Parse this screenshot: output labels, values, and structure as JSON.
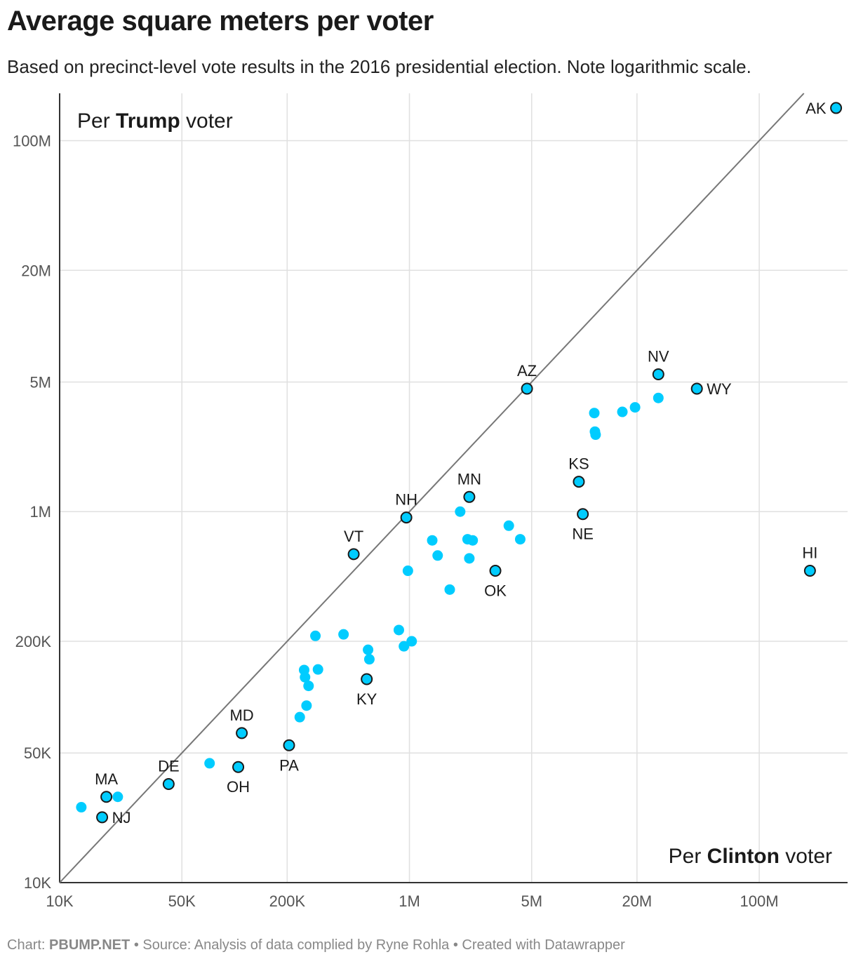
{
  "title": "Average square meters per voter",
  "subtitle": "Based on precinct-level vote results in the 2016 presidential election. Note logarithmic scale.",
  "footer": {
    "chart_prefix": "Chart:",
    "chart_brand": "PBUMP.NET",
    "rest": "• Source: Analysis of data complied by Ryne Rohla • Created with Datawrapper"
  },
  "colors": {
    "point": "#00ccff",
    "point_outline": "#1a1a1a",
    "grid": "#e0e0e0",
    "axis": "#333333",
    "diagonal": "#777777"
  },
  "chart_data": {
    "type": "scatter",
    "x_scale": "log",
    "y_scale": "log",
    "xlim": [
      10000,
      320000000
    ],
    "ylim": [
      10000,
      180000000
    ],
    "grid": true,
    "x_ticks": [
      {
        "value": 10000,
        "label": "10K"
      },
      {
        "value": 50000,
        "label": "50K"
      },
      {
        "value": 200000,
        "label": "200K"
      },
      {
        "value": 1000000,
        "label": "1M"
      },
      {
        "value": 5000000,
        "label": "5M"
      },
      {
        "value": 20000000,
        "label": "20M"
      },
      {
        "value": 100000000,
        "label": "100M"
      }
    ],
    "y_ticks": [
      {
        "value": 10000,
        "label": "10K"
      },
      {
        "value": 50000,
        "label": "50K"
      },
      {
        "value": 200000,
        "label": "200K"
      },
      {
        "value": 1000000,
        "label": "1M"
      },
      {
        "value": 5000000,
        "label": "5M"
      },
      {
        "value": 20000000,
        "label": "20M"
      },
      {
        "value": 100000000,
        "label": "100M"
      }
    ],
    "corner_labels": {
      "top_left": {
        "pre": "Per ",
        "bold": "Trump",
        "post": " voter"
      },
      "bottom_right": {
        "pre": "Per ",
        "bold": "Clinton",
        "post": " voter"
      }
    },
    "points": [
      {
        "label": "AK",
        "x": 275000000,
        "y": 150000000,
        "highlight": true,
        "pos": "left"
      },
      {
        "label": "NV",
        "x": 26500000,
        "y": 5500000,
        "highlight": true,
        "pos": "above"
      },
      {
        "label": "WY",
        "x": 44000000,
        "y": 4600000,
        "highlight": true,
        "pos": "right"
      },
      {
        "label": "AZ",
        "x": 4700000,
        "y": 4600000,
        "highlight": true,
        "pos": "above"
      },
      {
        "label": "KS",
        "x": 9300000,
        "y": 1450000,
        "highlight": true,
        "pos": "above"
      },
      {
        "label": "NE",
        "x": 9800000,
        "y": 970000,
        "highlight": true,
        "pos": "below"
      },
      {
        "label": "MN",
        "x": 2200000,
        "y": 1200000,
        "highlight": true,
        "pos": "above"
      },
      {
        "label": "NH",
        "x": 960000,
        "y": 930000,
        "highlight": true,
        "pos": "above"
      },
      {
        "label": "OK",
        "x": 3100000,
        "y": 480000,
        "highlight": true,
        "pos": "below"
      },
      {
        "label": "VT",
        "x": 480000,
        "y": 590000,
        "highlight": true,
        "pos": "above"
      },
      {
        "label": "HI",
        "x": 195000000,
        "y": 480000,
        "highlight": true,
        "pos": "above"
      },
      {
        "label": "KY",
        "x": 570000,
        "y": 125000,
        "highlight": true,
        "pos": "below"
      },
      {
        "label": "MD",
        "x": 110000,
        "y": 64000,
        "highlight": true,
        "pos": "above"
      },
      {
        "label": "PA",
        "x": 205000,
        "y": 55000,
        "highlight": true,
        "pos": "below"
      },
      {
        "label": "OH",
        "x": 105000,
        "y": 42000,
        "highlight": true,
        "pos": "below"
      },
      {
        "label": "DE",
        "x": 42000,
        "y": 34000,
        "highlight": true,
        "pos": "above"
      },
      {
        "label": "MA",
        "x": 18500,
        "y": 29000,
        "highlight": true,
        "pos": "above"
      },
      {
        "label": "NJ",
        "x": 17500,
        "y": 22500,
        "highlight": true,
        "pos": "right"
      },
      {
        "x": 26500000,
        "y": 4100000
      },
      {
        "x": 19500000,
        "y": 3650000
      },
      {
        "x": 16500000,
        "y": 3450000
      },
      {
        "x": 11400000,
        "y": 3400000
      },
      {
        "x": 11500000,
        "y": 2700000
      },
      {
        "x": 11600000,
        "y": 2600000
      },
      {
        "x": 1950000,
        "y": 1000000
      },
      {
        "x": 3700000,
        "y": 840000
      },
      {
        "x": 4300000,
        "y": 710000
      },
      {
        "x": 1350000,
        "y": 700000
      },
      {
        "x": 2150000,
        "y": 710000
      },
      {
        "x": 2300000,
        "y": 700000
      },
      {
        "x": 1450000,
        "y": 580000
      },
      {
        "x": 2200000,
        "y": 560000
      },
      {
        "x": 980000,
        "y": 480000
      },
      {
        "x": 1700000,
        "y": 380000
      },
      {
        "x": 870000,
        "y": 230000
      },
      {
        "x": 1030000,
        "y": 200000
      },
      {
        "x": 930000,
        "y": 188000
      },
      {
        "x": 420000,
        "y": 218000
      },
      {
        "x": 290000,
        "y": 214000
      },
      {
        "x": 580000,
        "y": 180000
      },
      {
        "x": 590000,
        "y": 160000
      },
      {
        "x": 250000,
        "y": 140000
      },
      {
        "x": 300000,
        "y": 141000
      },
      {
        "x": 253000,
        "y": 128000
      },
      {
        "x": 265000,
        "y": 115000
      },
      {
        "x": 258000,
        "y": 90000
      },
      {
        "x": 236000,
        "y": 78000
      },
      {
        "x": 72000,
        "y": 44000
      },
      {
        "x": 21500,
        "y": 29000
      },
      {
        "x": 13300,
        "y": 25500
      }
    ]
  }
}
